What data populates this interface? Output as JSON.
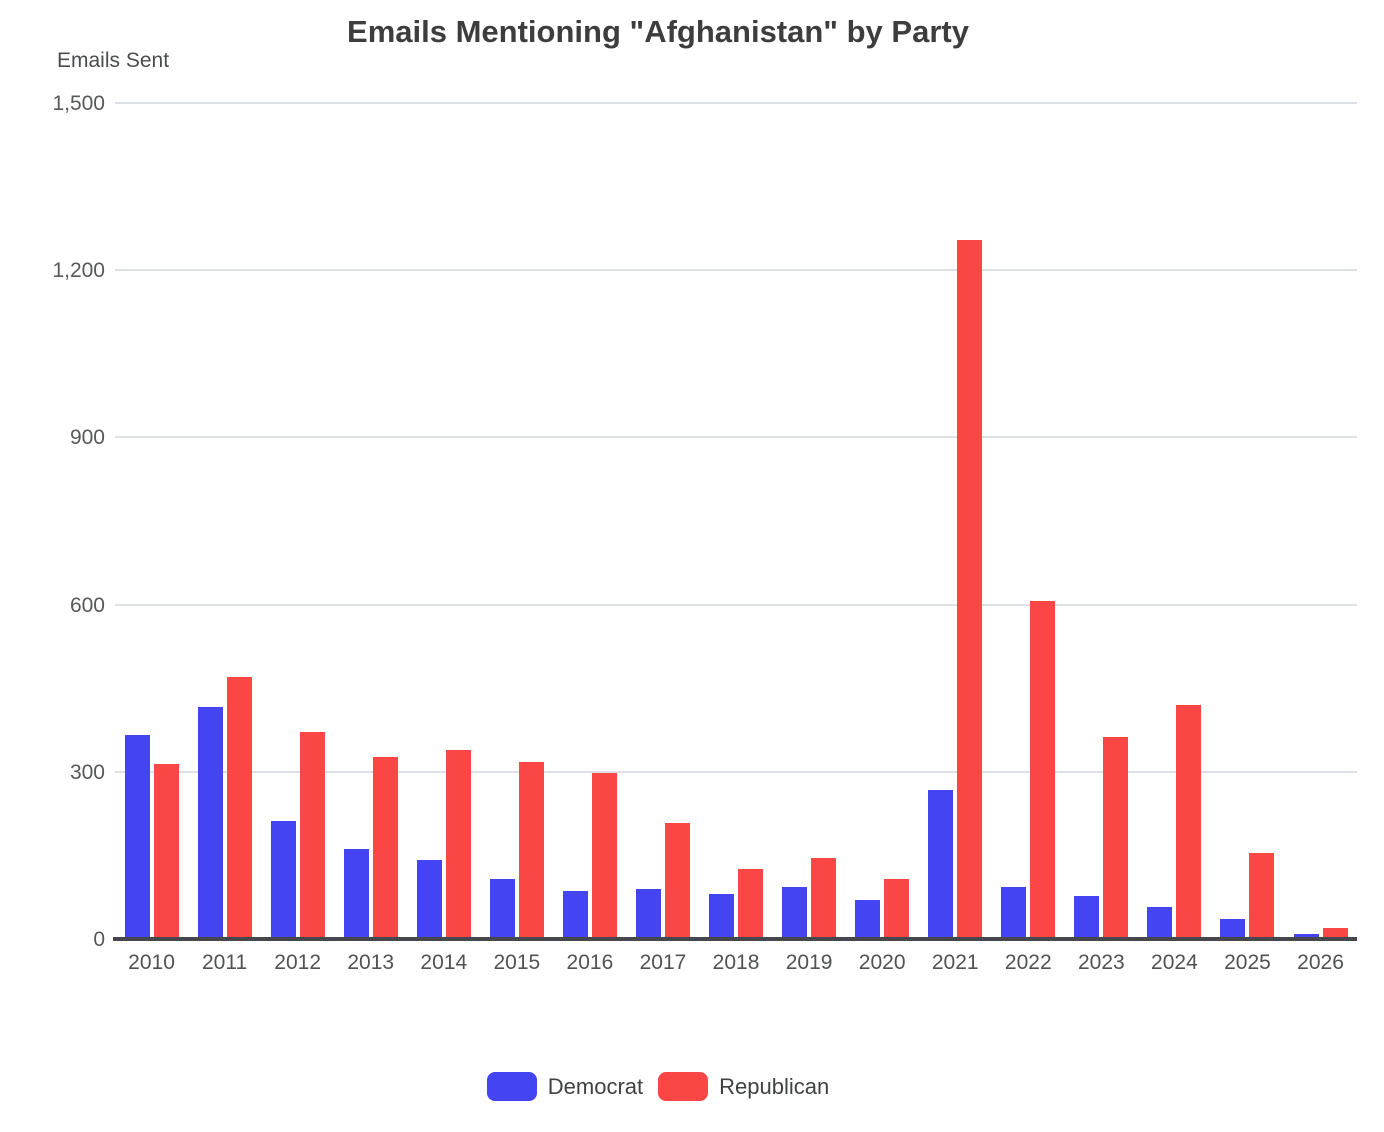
{
  "title": "Emails Mentioning \"Afghanistan\" by Party",
  "y_axis_title": "Emails Sent",
  "colors": {
    "democrat": "#4544f3",
    "republican": "#fb4646",
    "gridline": "#dce0e5",
    "axis_line": "#45474c",
    "title_text": "#3d3d3d",
    "tick_text": "#56585a"
  },
  "legend": {
    "position": "bottom",
    "items": [
      {
        "label": "Democrat",
        "color": "#4544f3"
      },
      {
        "label": "Republican",
        "color": "#fb4646"
      }
    ]
  },
  "chart_data": {
    "type": "bar",
    "title": "Emails Mentioning \"Afghanistan\" by Party",
    "xlabel": "",
    "ylabel": "Emails Sent",
    "ylim": [
      0,
      1500
    ],
    "ytick_interval": 300,
    "ytick_labels": [
      "0",
      "300",
      "600",
      "900",
      "1,200",
      "1,500"
    ],
    "grid": true,
    "legend_position": "bottom",
    "categories": [
      "2010",
      "2011",
      "2012",
      "2013",
      "2014",
      "2015",
      "2016",
      "2017",
      "2018",
      "2019",
      "2020",
      "2021",
      "2022",
      "2023",
      "2024",
      "2025",
      "2026"
    ],
    "series": [
      {
        "name": "Democrat",
        "color": "#4544f3",
        "values": [
          366,
          417,
          212,
          162,
          142,
          108,
          86,
          90,
          80,
          93,
          70,
          268,
          94,
          77,
          57,
          36,
          9
        ]
      },
      {
        "name": "Republican",
        "color": "#fb4646",
        "values": [
          314,
          471,
          372,
          326,
          340,
          318,
          298,
          209,
          125,
          146,
          107,
          1255,
          607,
          363,
          419,
          154,
          19
        ]
      }
    ]
  }
}
